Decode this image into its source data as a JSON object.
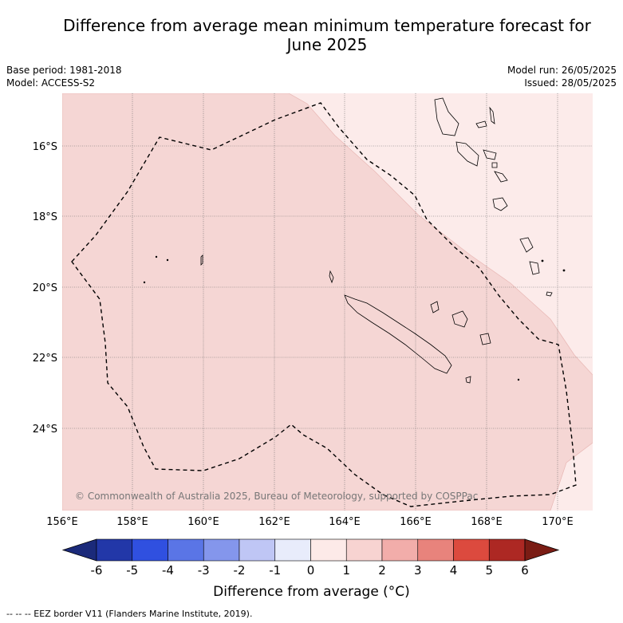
{
  "title_line1": "Difference from average mean minimum temperature forecast for",
  "title_line2": "June 2025",
  "base_period": "Base period: 1981-2018",
  "model": "Model: ACCESS-S2",
  "model_run": "Model run: 26/05/2025",
  "issued": "Issued: 28/05/2025",
  "copyright": "© Commonwealth of Australia 2025, Bureau of Meteorology, supported by COSPPac",
  "lat_labels": [
    "16°S",
    "18°S",
    "20°S",
    "22°S",
    "24°S"
  ],
  "lon_labels": [
    "156°E",
    "158°E",
    "160°E",
    "162°E",
    "164°E",
    "166°E",
    "168°E",
    "170°E"
  ],
  "colorbar": {
    "ticks": [
      "-6",
      "-5",
      "-4",
      "-3",
      "-2",
      "-1",
      "0",
      "1",
      "2",
      "3",
      "4",
      "5",
      "6"
    ],
    "colors": [
      "#1b2a7a",
      "#2237a8",
      "#3050e0",
      "#5a75e6",
      "#8496ec",
      "#bfc6f5",
      "#e8ecfb",
      "#fdeae8",
      "#f7d3d1",
      "#f2adaa",
      "#e8837c",
      "#dc4a3e",
      "#ad2823",
      "#7a1c14"
    ],
    "label": "Difference from average (°C)"
  },
  "fills": {
    "zone_1_2": "#f5d6d4",
    "zone_0_1": "#fcebea"
  },
  "footnote": "-- -- -- EEZ border V11 (Flanders Marine Institute, 2019)."
}
